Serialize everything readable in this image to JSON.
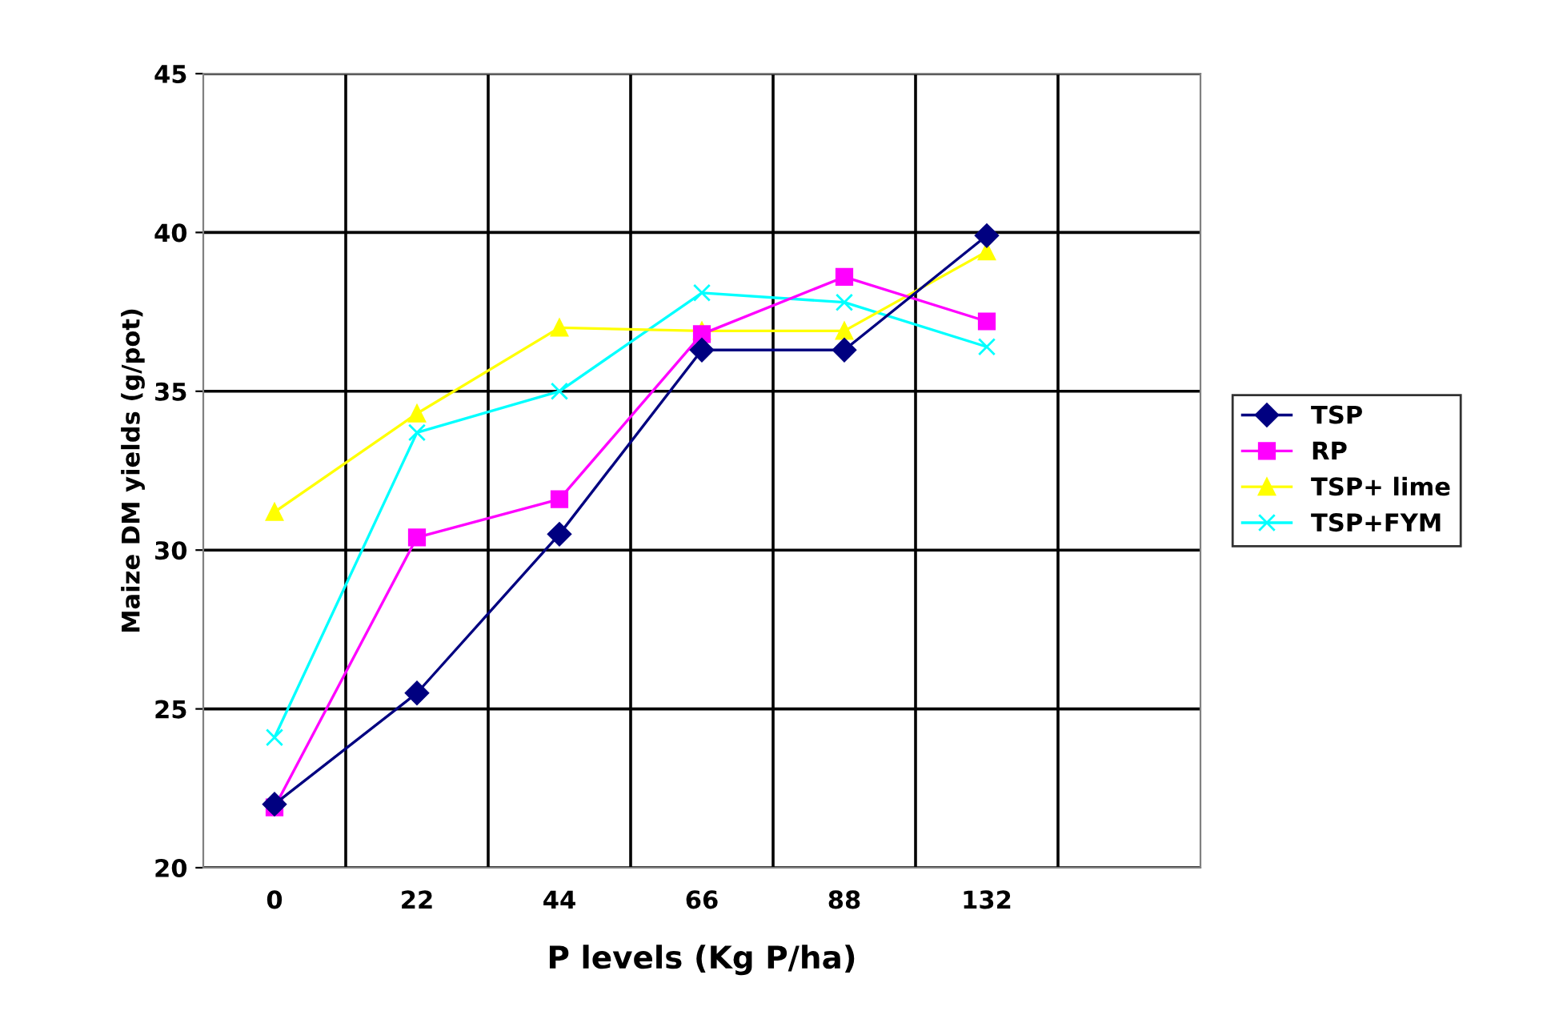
{
  "chart_data": {
    "type": "line",
    "xlabel": "P levels (Kg P/ha)",
    "ylabel": "Maize DM yields (g/pot)",
    "categories": [
      "0",
      "22",
      "44",
      "66",
      "88",
      "132",
      null
    ],
    "series": [
      {
        "name": "TSP",
        "color": "#000080",
        "marker": "diamond",
        "values": [
          22.0,
          25.5,
          30.5,
          36.3,
          36.3,
          39.9,
          null
        ]
      },
      {
        "name": "RP",
        "color": "#ff00ff",
        "marker": "square",
        "values": [
          21.9,
          30.4,
          31.6,
          36.8,
          38.6,
          37.2,
          null
        ]
      },
      {
        "name": "TSP+ lime",
        "color": "#ffff00",
        "marker": "triangle",
        "values": [
          31.2,
          34.3,
          37.0,
          36.9,
          36.9,
          39.4,
          null
        ]
      },
      {
        "name": "TSP+FYM",
        "color": "#00ffff",
        "marker": "cross",
        "values": [
          24.1,
          33.7,
          35.0,
          38.1,
          37.8,
          36.4,
          null
        ]
      }
    ],
    "ylim": [
      20,
      45
    ],
    "yticks": [
      20,
      25,
      30,
      35,
      40,
      45
    ],
    "grid": true,
    "legend": "right"
  }
}
